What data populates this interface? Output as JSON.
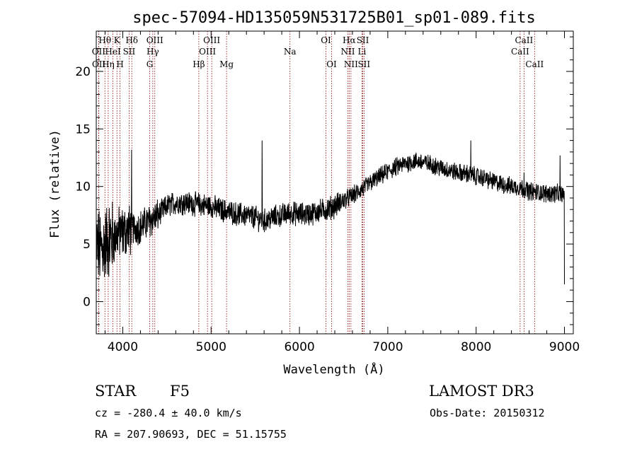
{
  "chart_data": {
    "type": "line",
    "title": "spec-57094-HD135059N531725B01_sp01-089.fits",
    "xlabel": "Wavelength (Å)",
    "ylabel": "Flux (relative)",
    "xlim": [
      3700,
      9100
    ],
    "ylim": [
      -2.8,
      23.5
    ],
    "x_ticks": [
      4000,
      5000,
      6000,
      7000,
      8000,
      9000
    ],
    "y_ticks": [
      0,
      5,
      10,
      15,
      20
    ],
    "series_color": "#000000",
    "line_marker_color": "#8b0000",
    "spectrum_anchors": {
      "x": [
        3700,
        3750,
        3800,
        3850,
        3900,
        3950,
        4000,
        4100,
        4200,
        4300,
        4400,
        4500,
        4600,
        4700,
        4800,
        4900,
        5000,
        5100,
        5200,
        5300,
        5400,
        5500,
        5600,
        5700,
        5800,
        5900,
        6000,
        6100,
        6200,
        6300,
        6400,
        6500,
        6600,
        6700,
        6800,
        6900,
        7000,
        7100,
        7200,
        7300,
        7400,
        7500,
        7600,
        7700,
        7800,
        7900,
        8000,
        8100,
        8200,
        8300,
        8400,
        8500,
        8600,
        8700,
        8800,
        8900,
        9000
      ],
      "y": [
        5.0,
        4.5,
        5.0,
        5.5,
        5.5,
        6.0,
        6.0,
        6.3,
        6.5,
        7.0,
        7.5,
        8.3,
        8.6,
        8.6,
        8.5,
        8.4,
        8.3,
        8.0,
        7.8,
        7.6,
        7.5,
        7.3,
        7.0,
        7.3,
        7.5,
        7.7,
        7.6,
        7.6,
        7.8,
        8.0,
        8.3,
        8.8,
        9.2,
        9.7,
        10.3,
        10.8,
        11.3,
        11.7,
        12.0,
        12.2,
        12.1,
        11.9,
        11.6,
        11.4,
        11.2,
        11.1,
        10.9,
        10.7,
        10.4,
        10.2,
        10.0,
        9.9,
        9.6,
        9.5,
        9.4,
        9.4,
        9.3
      ]
    },
    "features": [
      {
        "x": 5577,
        "y": 14.0
      },
      {
        "x": 7940,
        "y": 14.0
      },
      {
        "x": 4100,
        "y": 13.2
      },
      {
        "x": 8542,
        "y": 11.2
      },
      {
        "x": 8950,
        "y": 12.7
      },
      {
        "x": 9000,
        "y": 1.5
      }
    ],
    "spectral_lines": [
      {
        "label": "Hθ",
        "wave": 3798,
        "row": 1
      },
      {
        "label": "OII",
        "wave": 3727,
        "row": 2
      },
      {
        "label": "OII",
        "wave": 3729,
        "row": 3
      },
      {
        "label": "HeI",
        "wave": 3889,
        "row": 2
      },
      {
        "label": "Hη",
        "wave": 3835,
        "row": 3
      },
      {
        "label": "K",
        "wave": 3934,
        "row": 1
      },
      {
        "label": "SII",
        "wave": 4072,
        "row": 2
      },
      {
        "label": "H",
        "wave": 3969,
        "row": 3
      },
      {
        "label": "Hδ",
        "wave": 4102,
        "row": 1
      },
      {
        "label": "OIII",
        "wave": 4363,
        "row": 1
      },
      {
        "label": "Hγ",
        "wave": 4340,
        "row": 2
      },
      {
        "label": "G",
        "wave": 4305,
        "row": 3
      },
      {
        "label": "OIII",
        "wave": 5007,
        "row": 1
      },
      {
        "label": "OIII",
        "wave": 4959,
        "row": 2
      },
      {
        "label": "Hβ",
        "wave": 4861,
        "row": 3
      },
      {
        "label": "Mg",
        "wave": 5175,
        "row": 3
      },
      {
        "label": "Na",
        "wave": 5893,
        "row": 2
      },
      {
        "label": "OI",
        "wave": 6300,
        "row": 1
      },
      {
        "label": "OI",
        "wave": 6364,
        "row": 3
      },
      {
        "label": "Hα",
        "wave": 6563,
        "row": 1
      },
      {
        "label": "NII",
        "wave": 6548,
        "row": 2
      },
      {
        "label": "NII",
        "wave": 6583,
        "row": 3
      },
      {
        "label": "SII",
        "wave": 6717,
        "row": 1
      },
      {
        "label": "Li",
        "wave": 6708,
        "row": 2
      },
      {
        "label": "SII",
        "wave": 6731,
        "row": 3
      },
      {
        "label": "CaII",
        "wave": 8542,
        "row": 1
      },
      {
        "label": "CaII",
        "wave": 8498,
        "row": 2
      },
      {
        "label": "CaII",
        "wave": 8662,
        "row": 3
      }
    ]
  },
  "info": {
    "object_class": "STAR",
    "subclass": "F5",
    "survey": "LAMOST DR3",
    "redshift": "cz = -280.4 ± 40.0 km/s",
    "obs_date": "Obs-Date: 20150312",
    "coords": "RA = 207.90693, DEC =  51.15755"
  }
}
